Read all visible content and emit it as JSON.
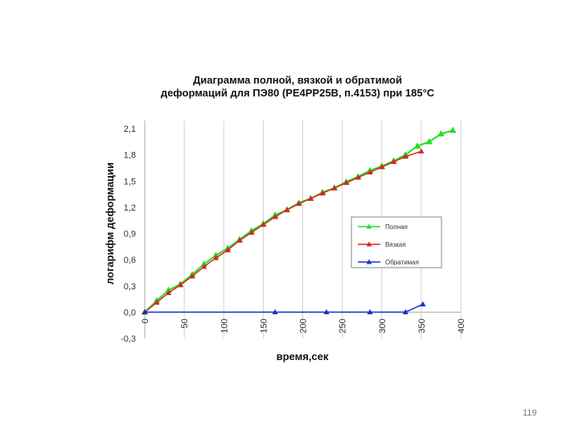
{
  "slide": {
    "page_number": "119"
  },
  "chart_data": {
    "type": "line",
    "title_lines": [
      "Диаграмма полной, вязкой и обратимой",
      "деформаций для ПЭ80 (PE4PP25B, п.4153) при 185°С"
    ],
    "xlabel": "время,сек",
    "ylabel": "логарифм деформации",
    "xlim": [
      0,
      400
    ],
    "ylim": [
      -0.3,
      2.1
    ],
    "x_ticks": [
      "0",
      "50",
      "100",
      "150",
      "200",
      "250",
      "300",
      "350",
      "400"
    ],
    "y_ticks": [
      "-0,3",
      "0,0",
      "0,3",
      "0,6",
      "0,9",
      "1,2",
      "1,5",
      "1,8",
      "2,1"
    ],
    "x_tick_values": [
      0,
      50,
      100,
      150,
      200,
      250,
      300,
      350,
      400
    ],
    "y_tick_values": [
      -0.3,
      0.0,
      0.3,
      0.6,
      0.9,
      1.2,
      1.5,
      1.8,
      2.1
    ],
    "grid": "vertical",
    "legend_position": "right",
    "series": [
      {
        "name": "Полная",
        "color": "#22dd22",
        "marker": "triangle",
        "x": [
          0,
          15,
          30,
          45,
          60,
          75,
          90,
          105,
          120,
          135,
          150,
          165,
          180,
          195,
          210,
          225,
          240,
          255,
          270,
          285,
          300,
          315,
          330,
          345,
          360,
          375,
          390
        ],
        "y": [
          0.0,
          0.13,
          0.25,
          0.32,
          0.43,
          0.55,
          0.65,
          0.73,
          0.83,
          0.93,
          1.01,
          1.11,
          1.17,
          1.25,
          1.3,
          1.37,
          1.42,
          1.49,
          1.55,
          1.62,
          1.67,
          1.73,
          1.8,
          1.9,
          1.95,
          2.04,
          2.08
        ]
      },
      {
        "name": "Вязкая",
        "color": "#dd2222",
        "marker": "triangle",
        "x": [
          0,
          15,
          30,
          45,
          60,
          75,
          90,
          105,
          120,
          135,
          150,
          165,
          180,
          195,
          210,
          225,
          240,
          255,
          270,
          285,
          300,
          315,
          330,
          350
        ],
        "y": [
          0.0,
          0.11,
          0.22,
          0.31,
          0.41,
          0.52,
          0.62,
          0.71,
          0.82,
          0.91,
          1.0,
          1.09,
          1.17,
          1.24,
          1.3,
          1.36,
          1.42,
          1.48,
          1.54,
          1.6,
          1.66,
          1.72,
          1.78,
          1.84
        ]
      },
      {
        "name": "Обратимая",
        "color": "#1133cc",
        "marker": "triangle",
        "x": [
          0,
          165,
          230,
          285,
          330,
          352
        ],
        "y": [
          0.0,
          0.0,
          0.0,
          0.0,
          0.0,
          0.09
        ]
      }
    ]
  }
}
